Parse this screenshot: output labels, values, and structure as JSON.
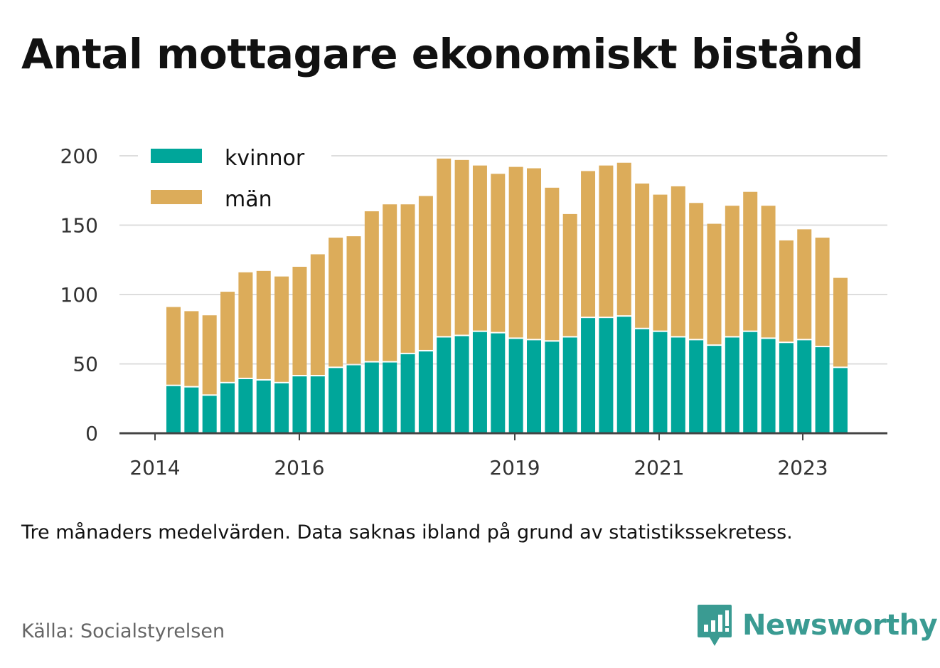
{
  "title": "Antal mottagare ekonomiskt bistånd",
  "note": "Tre månaders medelvärden. Data saknas ibland på grund av statistikssekretess.",
  "source": "Källa: Socialstyrelsen",
  "brand": {
    "name": "Newsworthy",
    "icon": "bar-chart-speech-bubble-icon",
    "color": "#3a9b92"
  },
  "chart_data": {
    "type": "bar",
    "stacked": true,
    "ylim": [
      0,
      200
    ],
    "yticks": [
      0,
      50,
      100,
      150,
      200
    ],
    "xticks": [
      "2014",
      "2016",
      "2019",
      "2021",
      "2023"
    ],
    "grid": true,
    "legend_position": "top-left",
    "colors": {
      "kvinnor": "#00a69a",
      "män": "#dcac5a",
      "grid": "#dddddd",
      "axis": "#444444"
    },
    "series": [
      {
        "name": "kvinnor",
        "values": [
          34,
          33,
          27,
          36,
          39,
          38,
          36,
          41,
          41,
          47,
          49,
          51,
          51,
          57,
          59,
          69,
          70,
          73,
          72,
          68,
          67,
          66,
          69,
          83,
          83,
          84,
          75,
          73,
          69,
          67,
          63,
          69,
          73,
          68,
          65,
          67,
          62,
          47
        ]
      },
      {
        "name": "män",
        "values": [
          57,
          55,
          58,
          66,
          77,
          79,
          77,
          79,
          88,
          94,
          93,
          109,
          114,
          108,
          112,
          129,
          127,
          120,
          115,
          124,
          124,
          111,
          89,
          106,
          110,
          111,
          105,
          99,
          109,
          99,
          88,
          95,
          101,
          96,
          74,
          80,
          79,
          65
        ]
      }
    ]
  }
}
